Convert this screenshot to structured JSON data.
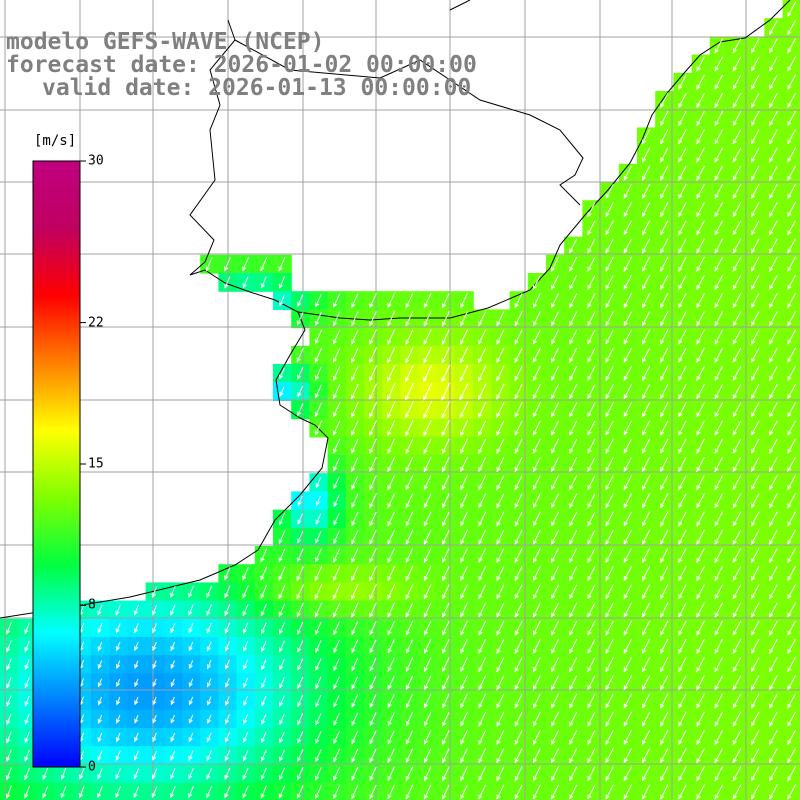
{
  "title": {
    "model": "modelo GEFS-WAVE (NCEP)",
    "forecast": "forecast date: 2026-01-02 00:00:00",
    "valid": "valid date: 2026-01-13 00:00:00"
  },
  "colorbar": {
    "unit": "[m/s]",
    "min": 0,
    "max": 30,
    "ticks": [
      {
        "label": "30",
        "value": 30
      },
      {
        "label": "22",
        "value": 22
      },
      {
        "label": "15",
        "value": 15
      },
      {
        "label": "8",
        "value": 8
      },
      {
        "label": "0",
        "value": 0
      }
    ],
    "colors": [
      "#0000ff",
      "#0080ff",
      "#00ffff",
      "#00ff40",
      "#80ff00",
      "#ffff00",
      "#ff8000",
      "#ff0000",
      "#c00060",
      "#c0007f"
    ]
  },
  "map": {
    "ocean_fallback_color": "#40d860",
    "land_color": "#ffffff",
    "grid_color": "#a0a0a0",
    "coast_color": "#000000",
    "arrow_color": "#ffffff"
  }
}
